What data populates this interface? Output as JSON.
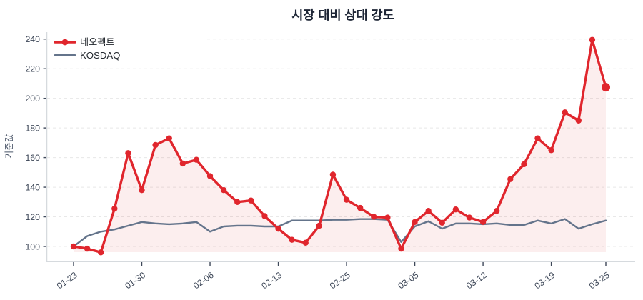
{
  "title": "시장 대비 상대 강도",
  "y_axis": {
    "title": "기준값",
    "tick_labels": [
      "100",
      "120",
      "140",
      "160",
      "180",
      "200",
      "220",
      "240"
    ],
    "tick_values": [
      100,
      120,
      140,
      160,
      180,
      200,
      220,
      240
    ],
    "range": [
      90,
      245
    ]
  },
  "x_axis": {
    "tick_labels": [
      "01-23",
      "01-30",
      "02-06",
      "02-13",
      "02-25",
      "03-05",
      "03-12",
      "03-19",
      "03-25"
    ],
    "tick_point_indices": [
      0,
      5,
      10,
      15,
      20,
      25,
      30,
      35,
      39
    ]
  },
  "legend": {
    "items": [
      {
        "label": "네오펙트",
        "color": "#e0262d",
        "swatch": "line-with-dot"
      },
      {
        "label": "KOSDAQ",
        "color": "#64748b",
        "swatch": "line"
      }
    ],
    "position": "top-left-inside"
  },
  "colors": {
    "neofect_line": "#e0262d",
    "neofect_fill": "rgba(217,38,44,0.08)",
    "kosdaq_line": "#64748b",
    "grid": "#e8e8e8",
    "axis": "#d6dade",
    "tick": "#3e4859",
    "label": "#3b4556",
    "title": "#1e2636"
  },
  "chart_data": {
    "type": "line",
    "title": "시장 대비 상대 강도",
    "xlabel": "",
    "ylabel": "기준값",
    "ylim": [
      90,
      245
    ],
    "grid": "horizontal-dashed",
    "legend_position": "top-left-inside",
    "x_tick_labels": [
      "01-23",
      "01-30",
      "02-06",
      "02-13",
      "02-25",
      "03-05",
      "03-12",
      "03-19",
      "03-25"
    ],
    "x_tick_point_indices": [
      0,
      5,
      10,
      15,
      20,
      25,
      30,
      35,
      39
    ],
    "point_count": 40,
    "series": [
      {
        "name": "네오펙트",
        "color": "#e0262d",
        "fill": true,
        "markers": true,
        "values": [
          100,
          98.5,
          96,
          125.5,
          163,
          138,
          168.5,
          173,
          156,
          158.5,
          147.5,
          138,
          130,
          131,
          120.5,
          112,
          104.5,
          102.5,
          114,
          148.5,
          131.5,
          126,
          120,
          119.5,
          98.5,
          116.5,
          124,
          116,
          125,
          119.5,
          116.5,
          124,
          145.5,
          155.5,
          173,
          165,
          190.5,
          185,
          239.5,
          207.5
        ]
      },
      {
        "name": "KOSDAQ",
        "color": "#64748b",
        "fill": false,
        "markers": false,
        "values": [
          100,
          107,
          110,
          111.5,
          114,
          116.5,
          115.5,
          115,
          115.5,
          116.5,
          110,
          113.5,
          114,
          114,
          113.5,
          113.5,
          117.5,
          117.5,
          117.5,
          118,
          118,
          118.5,
          118.5,
          118,
          103,
          113.5,
          117,
          112,
          115.5,
          115.5,
          115,
          115.5,
          114.5,
          114.5,
          117.5,
          115.5,
          118.5,
          112,
          115,
          117.5
        ]
      }
    ]
  }
}
